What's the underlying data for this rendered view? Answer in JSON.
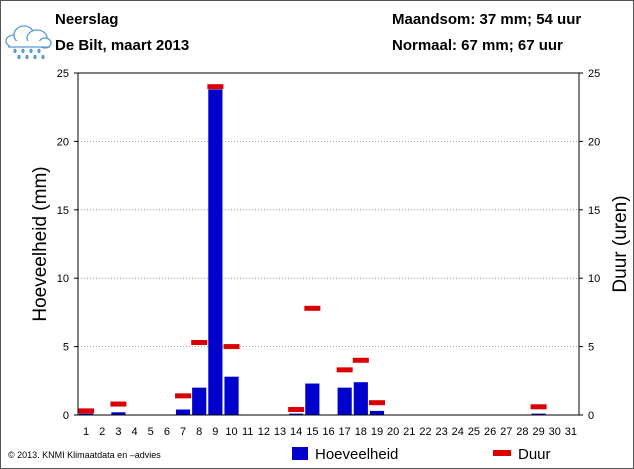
{
  "header": {
    "title": "Neerslag",
    "subtitle": "De Bilt, maart 2013",
    "month_total": "Maandsom: 37 mm; 54 uur",
    "normal": "Normaal: 67 mm; 67 uur",
    "weather_icon": "rain-cloud-icon"
  },
  "footer": {
    "copyright": "© 2013. KNMI Klimaatdata en –advies"
  },
  "chart_data": {
    "type": "bar",
    "xlabel": "",
    "ylabel": "Hoeveelheid (mm)",
    "y2label": "Duur (uren)",
    "ylim": [
      0,
      25
    ],
    "y2lim": [
      0,
      25
    ],
    "yticks": [
      0,
      5,
      10,
      15,
      20,
      25
    ],
    "grid": true,
    "legend_position": "bottom",
    "categories": [
      "1",
      "2",
      "3",
      "4",
      "5",
      "6",
      "7",
      "8",
      "9",
      "10",
      "11",
      "12",
      "13",
      "14",
      "15",
      "16",
      "17",
      "18",
      "19",
      "20",
      "21",
      "22",
      "23",
      "24",
      "25",
      "26",
      "27",
      "28",
      "29",
      "30",
      "31"
    ],
    "series": [
      {
        "name": "Hoeveelheid",
        "type": "bar",
        "color": "#0000cc",
        "values": [
          0.1,
          0,
          0.2,
          0,
          0,
          0,
          0.4,
          2.0,
          23.8,
          2.8,
          0,
          0,
          0,
          0.1,
          2.3,
          0,
          2.0,
          2.4,
          0.3,
          0,
          0,
          0,
          0,
          0,
          0,
          0,
          0,
          0,
          0.1,
          0,
          0
        ]
      },
      {
        "name": "Duur",
        "type": "marker",
        "color": "#dd0000",
        "values": [
          0.3,
          0,
          0.8,
          0,
          0,
          0,
          1.4,
          5.3,
          24.0,
          5.0,
          0,
          0,
          0,
          0.4,
          7.8,
          0,
          3.3,
          4.0,
          0.9,
          0,
          0,
          0,
          0,
          0,
          0,
          0,
          0,
          0,
          0.6,
          0,
          0
        ]
      }
    ]
  }
}
